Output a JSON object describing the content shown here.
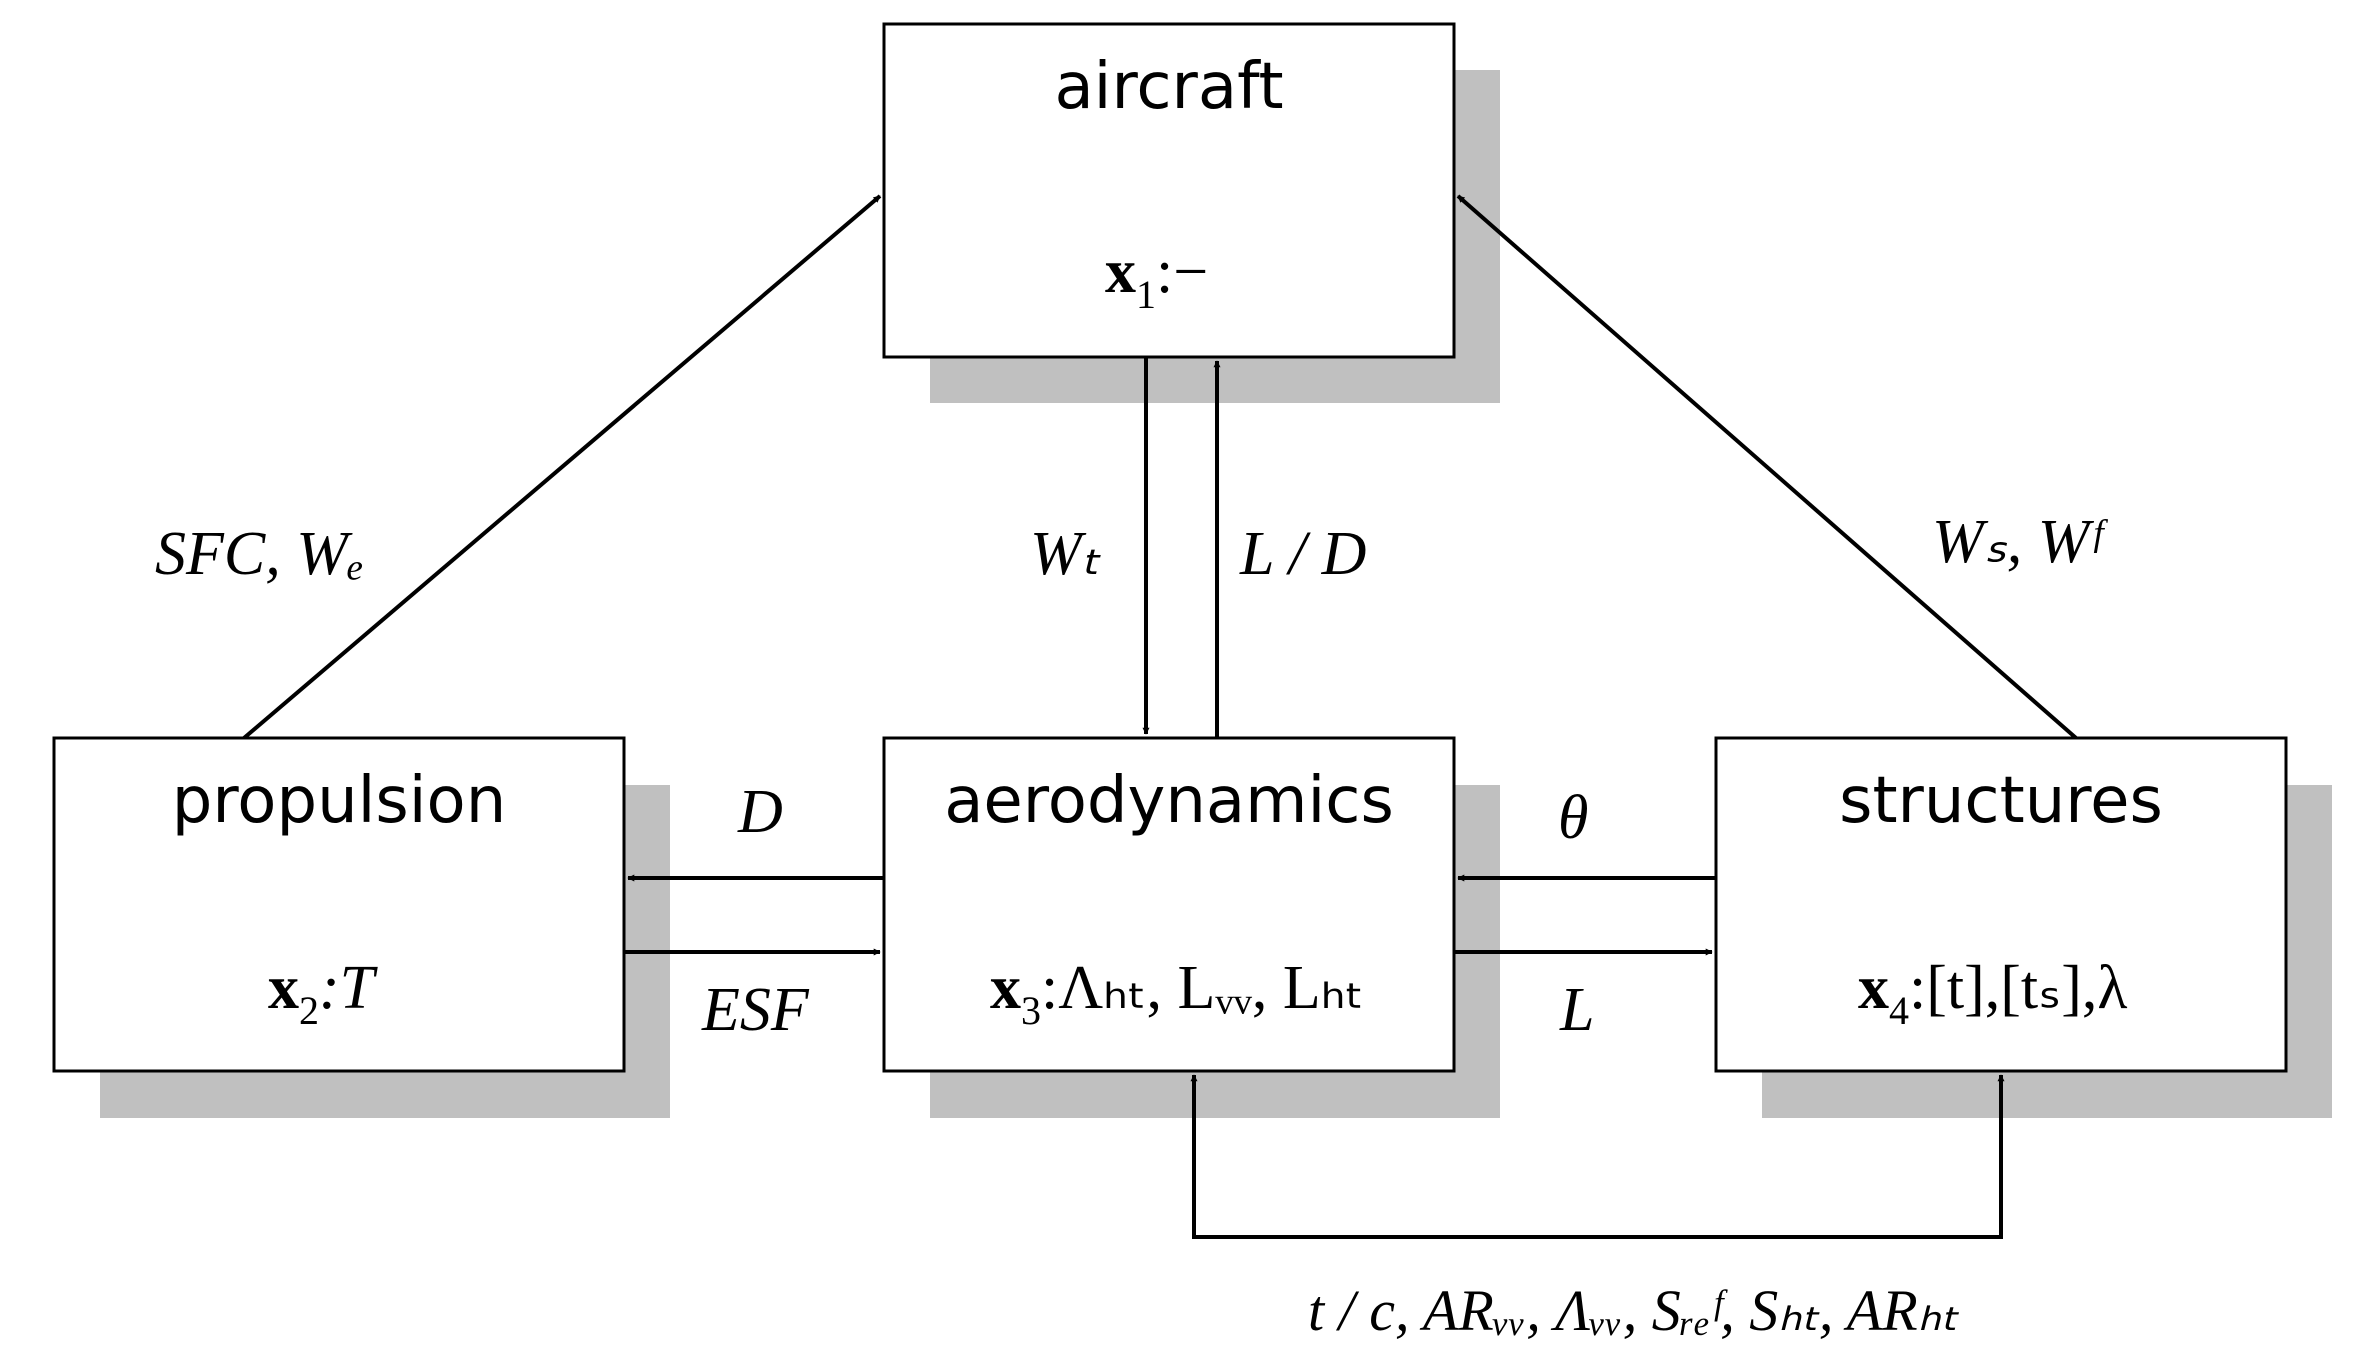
{
  "nodes": {
    "aircraft": {
      "title": "aircraft",
      "var": "x",
      "sub": "1",
      "rest": ":−"
    },
    "propulsion": {
      "title": "propulsion",
      "var": "x",
      "sub": "2",
      "rest": ":T"
    },
    "aerodynamics": {
      "title": "aerodynamics",
      "var": "x",
      "sub": "3",
      "rest": ":Λₕₜ, Lᵥᵥ, Lₕₜ"
    },
    "structures": {
      "title": "structures",
      "var": "x",
      "sub": "4",
      "rest": ":[t],[tₛ],λ"
    }
  },
  "edges": {
    "prop_to_aircraft": "SFC, Wₑ",
    "struct_to_aircraft": "Wₛ, Wᶠ",
    "aircraft_to_aero": "Wₜ",
    "aero_to_aircraft": "L / D",
    "aero_to_prop": "D",
    "prop_to_aero": "ESF",
    "struct_to_aero": "θ",
    "aero_to_struct": "L",
    "aero_struct_shared": "t / c, ARᵥᵥ, Λᵥᵥ, Sᵣₑᶠ, Sₕₜ, ARₕₜ"
  },
  "colors": {
    "shadow": "#c0c0c0",
    "stroke": "#000000"
  }
}
